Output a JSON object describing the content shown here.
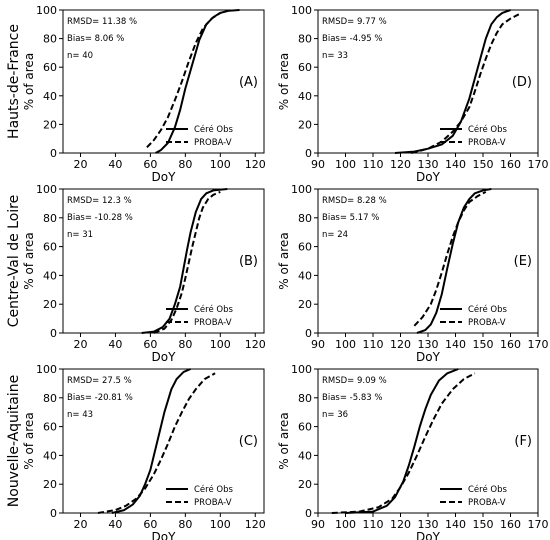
{
  "chart_data": [
    {
      "panel": "(A)",
      "type": "line",
      "row_label": "Hauts-de-France",
      "xlabel": "DoY",
      "ylabel": "% of area",
      "xlim": [
        10,
        125
      ],
      "ylim": [
        0,
        100
      ],
      "xticks": [
        20,
        40,
        60,
        80,
        100,
        120
      ],
      "yticks": [
        0,
        20,
        40,
        60,
        80,
        100
      ],
      "stats": [
        "RMSD= 11.38 %",
        "Bias= 8.06 %",
        "n= 40"
      ],
      "legend_position": "lower-right",
      "series": [
        {
          "name": "Céré Obs",
          "style": "solid",
          "x": [
            63,
            66,
            70,
            74,
            77,
            80,
            84,
            88,
            92,
            96,
            100,
            105,
            111
          ],
          "y": [
            0,
            2,
            7,
            18,
            30,
            45,
            62,
            79,
            90,
            95,
            98,
            99.5,
            100
          ]
        },
        {
          "name": "PROBA-V",
          "style": "dashed",
          "x": [
            58,
            62,
            66,
            70,
            74,
            78,
            82,
            86,
            90,
            95,
            100
          ],
          "y": [
            4,
            9,
            16,
            25,
            37,
            50,
            64,
            77,
            87,
            94,
            98
          ]
        }
      ]
    },
    {
      "panel": "(D)",
      "type": "line",
      "row_label": "",
      "xlabel": "DoY",
      "ylabel": "% of area",
      "xlim": [
        90,
        170
      ],
      "ylim": [
        0,
        100
      ],
      "xticks": [
        90,
        100,
        110,
        120,
        130,
        140,
        150,
        160,
        170
      ],
      "yticks": [
        0,
        20,
        40,
        60,
        80,
        100
      ],
      "stats": [
        "RMSD= 9.77 %",
        "Bias= -4.95 %",
        "n= 33"
      ],
      "legend_position": "lower-right",
      "series": [
        {
          "name": "Céré Obs",
          "style": "solid",
          "x": [
            118,
            125,
            130,
            135,
            139,
            142,
            145,
            147,
            149,
            151,
            153,
            155,
            157,
            160
          ],
          "y": [
            0,
            1,
            3,
            6,
            12,
            22,
            38,
            52,
            66,
            80,
            90,
            95,
            98,
            100
          ]
        },
        {
          "name": "PROBA-V",
          "style": "dashed",
          "x": [
            124,
            130,
            135,
            139,
            142,
            145,
            147,
            149,
            151,
            153,
            155,
            157,
            160,
            163
          ],
          "y": [
            0,
            3,
            8,
            15,
            22,
            32,
            43,
            55,
            66,
            76,
            84,
            90,
            94,
            97
          ]
        }
      ]
    },
    {
      "panel": "(B)",
      "type": "line",
      "row_label": "Centre-Val de Loire",
      "xlabel": "DoY",
      "ylabel": "% of area",
      "xlim": [
        10,
        125
      ],
      "ylim": [
        0,
        100
      ],
      "xticks": [
        20,
        40,
        60,
        80,
        100,
        120
      ],
      "yticks": [
        0,
        20,
        40,
        60,
        80,
        100
      ],
      "stats": [
        "RMSD= 12.3 %",
        "Bias= -10.28 %",
        "n= 31"
      ],
      "legend_position": "lower-right",
      "series": [
        {
          "name": "Céré Obs",
          "style": "solid",
          "x": [
            55,
            62,
            67,
            71,
            74,
            77,
            79,
            81,
            83,
            86,
            89,
            92,
            96,
            104
          ],
          "y": [
            0,
            1,
            4,
            10,
            20,
            32,
            45,
            58,
            70,
            84,
            93,
            97,
            99,
            100
          ]
        },
        {
          "name": "PROBA-V",
          "style": "dashed",
          "x": [
            62,
            68,
            72,
            75,
            78,
            80,
            82,
            84,
            86,
            88,
            90,
            93,
            96,
            100
          ],
          "y": [
            0,
            3,
            9,
            17,
            28,
            38,
            49,
            60,
            70,
            80,
            87,
            93,
            96,
            98
          ]
        }
      ]
    },
    {
      "panel": "(E)",
      "type": "line",
      "row_label": "",
      "xlabel": "DoY",
      "ylabel": "% of area",
      "xlim": [
        90,
        170
      ],
      "ylim": [
        0,
        100
      ],
      "xticks": [
        90,
        100,
        110,
        120,
        130,
        140,
        150,
        160,
        170
      ],
      "yticks": [
        0,
        20,
        40,
        60,
        80,
        100
      ],
      "stats": [
        "RMSD= 8.28 %",
        "Bias= 5.17 %",
        "n= 24"
      ],
      "legend_position": "lower-right",
      "series": [
        {
          "name": "Céré Obs",
          "style": "solid",
          "x": [
            126,
            129,
            131,
            133,
            135,
            137,
            139,
            141,
            143,
            145,
            147,
            150,
            153
          ],
          "y": [
            0,
            2,
            6,
            14,
            27,
            45,
            62,
            77,
            87,
            93,
            97,
            99,
            100
          ]
        },
        {
          "name": "PROBA-V",
          "style": "dashed",
          "x": [
            125,
            128,
            131,
            133,
            135,
            137,
            139,
            141,
            143,
            145,
            148,
            151
          ],
          "y": [
            5,
            11,
            20,
            30,
            42,
            55,
            67,
            77,
            85,
            91,
            95,
            98
          ]
        }
      ]
    },
    {
      "panel": "(C)",
      "type": "line",
      "row_label": "Nouvelle-Aquitaine",
      "xlabel": "DoY",
      "ylabel": "% of area",
      "xlim": [
        10,
        125
      ],
      "ylim": [
        0,
        100
      ],
      "xticks": [
        20,
        40,
        60,
        80,
        100,
        120
      ],
      "yticks": [
        0,
        20,
        40,
        60,
        80,
        100
      ],
      "stats": [
        "RMSD= 27.5 %",
        "Bias= -20.81 %",
        "n= 43"
      ],
      "legend_position": "lower-right",
      "series": [
        {
          "name": "Céré Obs",
          "style": "solid",
          "x": [
            38,
            45,
            50,
            54,
            57,
            60,
            62,
            64,
            66,
            68,
            70,
            72,
            75,
            79,
            83
          ],
          "y": [
            0,
            2,
            6,
            12,
            20,
            30,
            40,
            50,
            60,
            70,
            78,
            86,
            93,
            98,
            100
          ]
        },
        {
          "name": "PROBA-V",
          "style": "dashed",
          "x": [
            30,
            40,
            46,
            52,
            57,
            62,
            66,
            70,
            74,
            78,
            82,
            86,
            91,
            97
          ],
          "y": [
            0,
            2,
            5,
            10,
            17,
            27,
            37,
            48,
            60,
            70,
            79,
            86,
            93,
            97
          ]
        }
      ]
    },
    {
      "panel": "(F)",
      "type": "line",
      "row_label": "",
      "xlabel": "DoY",
      "ylabel": "% of area",
      "xlim": [
        90,
        170
      ],
      "ylim": [
        0,
        100
      ],
      "xticks": [
        90,
        100,
        110,
        120,
        130,
        140,
        150,
        160,
        170
      ],
      "yticks": [
        0,
        20,
        40,
        60,
        80,
        100
      ],
      "stats": [
        "RMSD= 9.09 %",
        "Bias= -5.83 %",
        "n= 36"
      ],
      "legend_position": "lower-right",
      "series": [
        {
          "name": "Céré Obs",
          "style": "solid",
          "x": [
            100,
            110,
            115,
            118,
            121,
            123,
            125,
            127,
            129,
            131,
            134,
            137,
            141
          ],
          "y": [
            0,
            1,
            5,
            11,
            22,
            33,
            46,
            60,
            72,
            82,
            92,
            97,
            100
          ]
        },
        {
          "name": "PROBA-V",
          "style": "dashed",
          "x": [
            95,
            105,
            112,
            117,
            120,
            123,
            126,
            129,
            132,
            135,
            139,
            143,
            147
          ],
          "y": [
            0,
            1,
            4,
            10,
            18,
            28,
            40,
            53,
            65,
            76,
            86,
            93,
            97
          ]
        }
      ]
    }
  ]
}
